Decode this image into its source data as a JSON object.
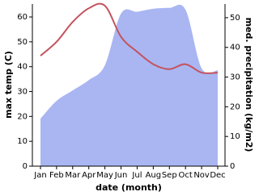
{
  "chart_data": {
    "type": "line",
    "x_label": "date (month)",
    "y_label": "max temp (C)",
    "y2_label": "med. precipitation (kg/m2)",
    "categories": [
      "Jan",
      "Feb",
      "Mar",
      "Apr",
      "May",
      "Jun",
      "Jul",
      "Aug",
      "Sep",
      "Oct",
      "Nov",
      "Dec"
    ],
    "series": [
      {
        "name": "med. precipitation (kg/m2)",
        "type": "area",
        "axis": "y2",
        "color": "#aab6f2",
        "values": [
          16,
          22,
          25.5,
          29,
          34,
          51.4,
          52,
          53,
          53.3,
          52.7,
          33,
          32.3
        ]
      },
      {
        "name": "max temp (C)",
        "type": "line",
        "axis": "y",
        "color": "#c4535d",
        "values": [
          44.4,
          50,
          58,
          63.5,
          64.5,
          52,
          46,
          41,
          39,
          41,
          37.6,
          37.6
        ]
      }
    ],
    "ylim": [
      0,
      65.2
    ],
    "yticks": [
      0,
      10,
      20,
      30,
      40,
      50,
      60
    ],
    "y2lim": [
      0,
      54.6
    ],
    "y2ticks": [
      0,
      10,
      20,
      30,
      40,
      50
    ],
    "grid": false
  }
}
